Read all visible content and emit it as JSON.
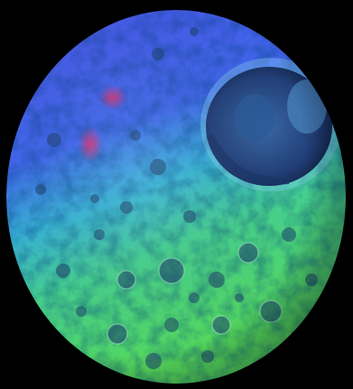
{
  "image": {
    "subject": "moon-icon",
    "colors": {
      "space": "#000000",
      "blue": "#3f5fe8",
      "cyan": "#2fb6d2",
      "green": "#4fd35f",
      "crater_shadow": "#203a72",
      "crater_rim": "#8ed8f0",
      "red_patch": "#e0306a"
    }
  }
}
